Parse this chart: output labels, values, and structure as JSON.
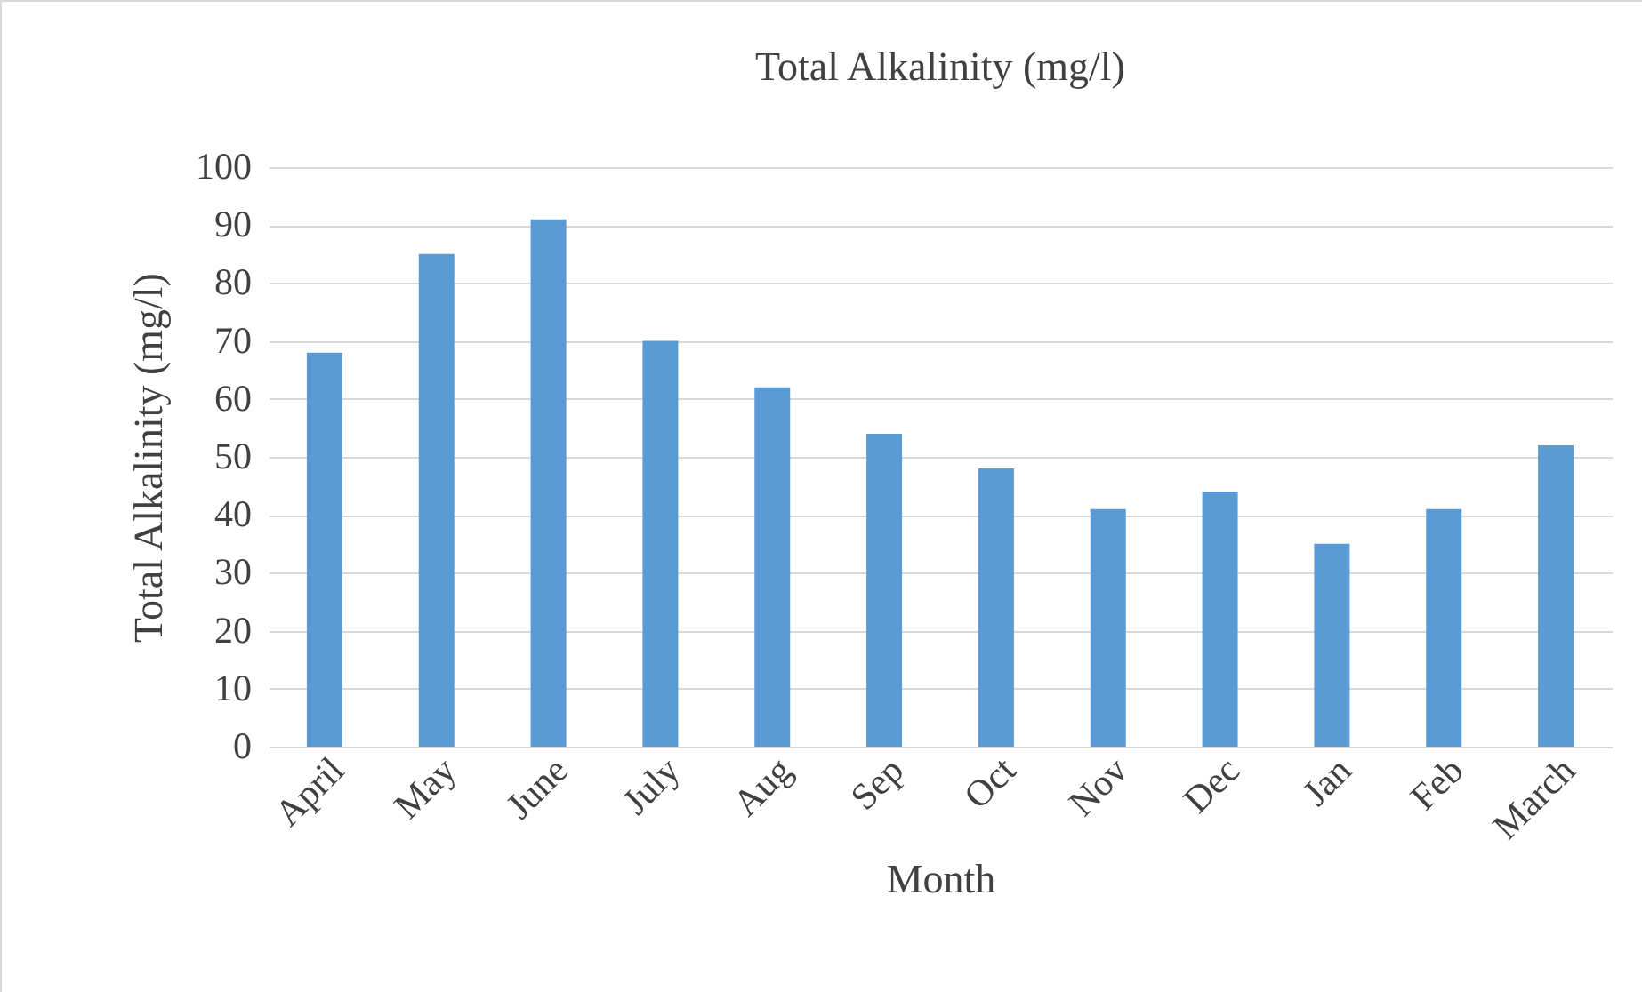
{
  "chart_data": {
    "type": "bar",
    "title": "Total Alkalinity (mg/l)",
    "xlabel": "Month",
    "ylabel": "Total Alkalinity (mg/l)",
    "categories": [
      "April",
      "May",
      "June",
      "July",
      "Aug",
      "Sep",
      "Oct",
      "Nov",
      "Dec",
      "Jan",
      "Feb",
      "March"
    ],
    "values": [
      68,
      85,
      91,
      70,
      62,
      54,
      48,
      41,
      44,
      35,
      41,
      52
    ],
    "color": "#5b9bd5",
    "ylim": [
      0,
      100
    ],
    "yticks": [
      0,
      10,
      20,
      30,
      40,
      50,
      60,
      70,
      80,
      90,
      100
    ],
    "grid": "y"
  }
}
